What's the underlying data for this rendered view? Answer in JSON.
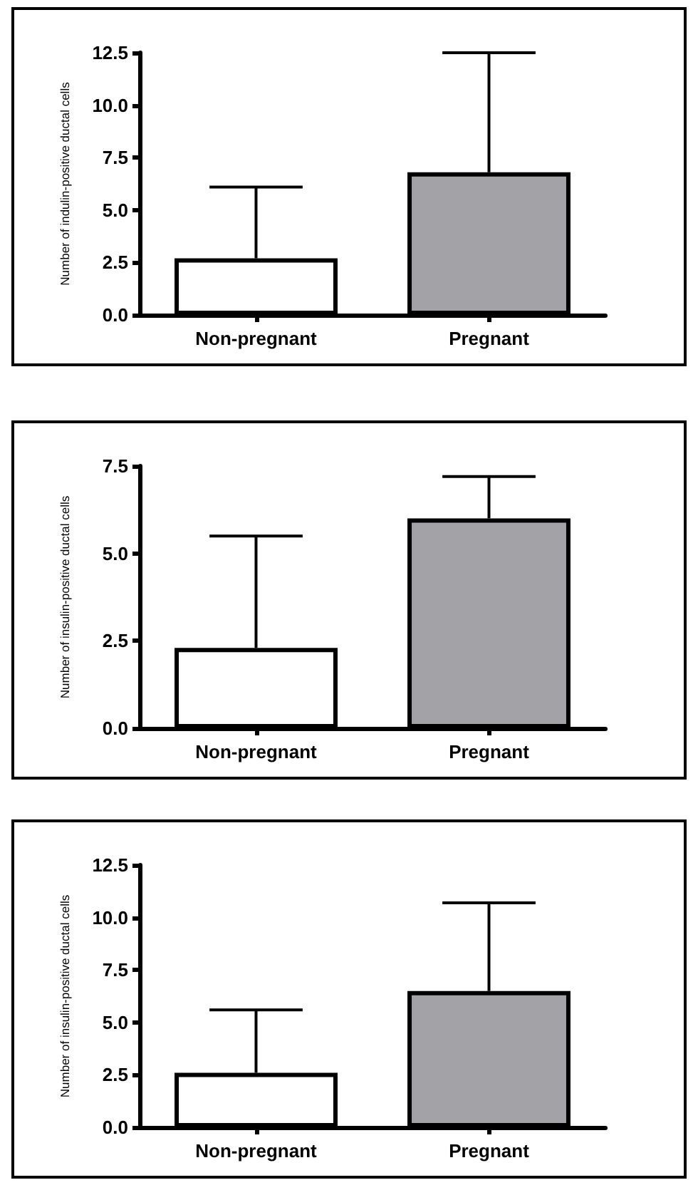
{
  "chart_data": [
    {
      "type": "bar",
      "ylabel": "Number of indulin-positive ductal cells",
      "categories": [
        "Non-pregnant",
        "Pregnant"
      ],
      "values": [
        2.7,
        6.8
      ],
      "colors": [
        "#ffffff",
        "#a3a2a7"
      ],
      "errors": [
        [
          2.7,
          6.1
        ],
        [
          6.8,
          12.5
        ]
      ],
      "ylim": [
        0,
        12.5
      ],
      "yticks": [
        {
          "value": 0,
          "label": "0.0"
        },
        2.5,
        {
          "value": 5,
          "label": "5.0"
        },
        7.5,
        {
          "value": 10,
          "label": "10.0"
        },
        12.5
      ]
    },
    {
      "type": "bar",
      "ylabel": "Number of insulin-positive ductal cells",
      "categories": [
        "Non-pregnant",
        "Pregnant"
      ],
      "values": [
        2.3,
        6.0
      ],
      "colors": [
        "#ffffff",
        "#a3a2a7"
      ],
      "errors": [
        [
          2.3,
          5.5
        ],
        [
          6.0,
          7.2
        ]
      ],
      "ylim": [
        0,
        7.5
      ],
      "yticks": [
        {
          "value": 0,
          "label": "0.0"
        },
        2.5,
        {
          "value": 5,
          "label": "5.0"
        },
        7.5
      ]
    },
    {
      "type": "bar",
      "ylabel": "Number of insulin-positive ductal cells",
      "categories": [
        "Non-pregnant",
        "Pregnant"
      ],
      "values": [
        2.6,
        6.5
      ],
      "colors": [
        "#ffffff",
        "#a3a2a7"
      ],
      "errors": [
        [
          2.6,
          5.6
        ],
        [
          6.5,
          10.7
        ]
      ],
      "ylim": [
        0,
        12.5
      ],
      "yticks": [
        {
          "value": 0,
          "label": "0.0"
        },
        2.5,
        {
          "value": 5,
          "label": "5.0"
        },
        7.5,
        {
          "value": 10,
          "label": "10.0"
        },
        12.5
      ]
    }
  ]
}
